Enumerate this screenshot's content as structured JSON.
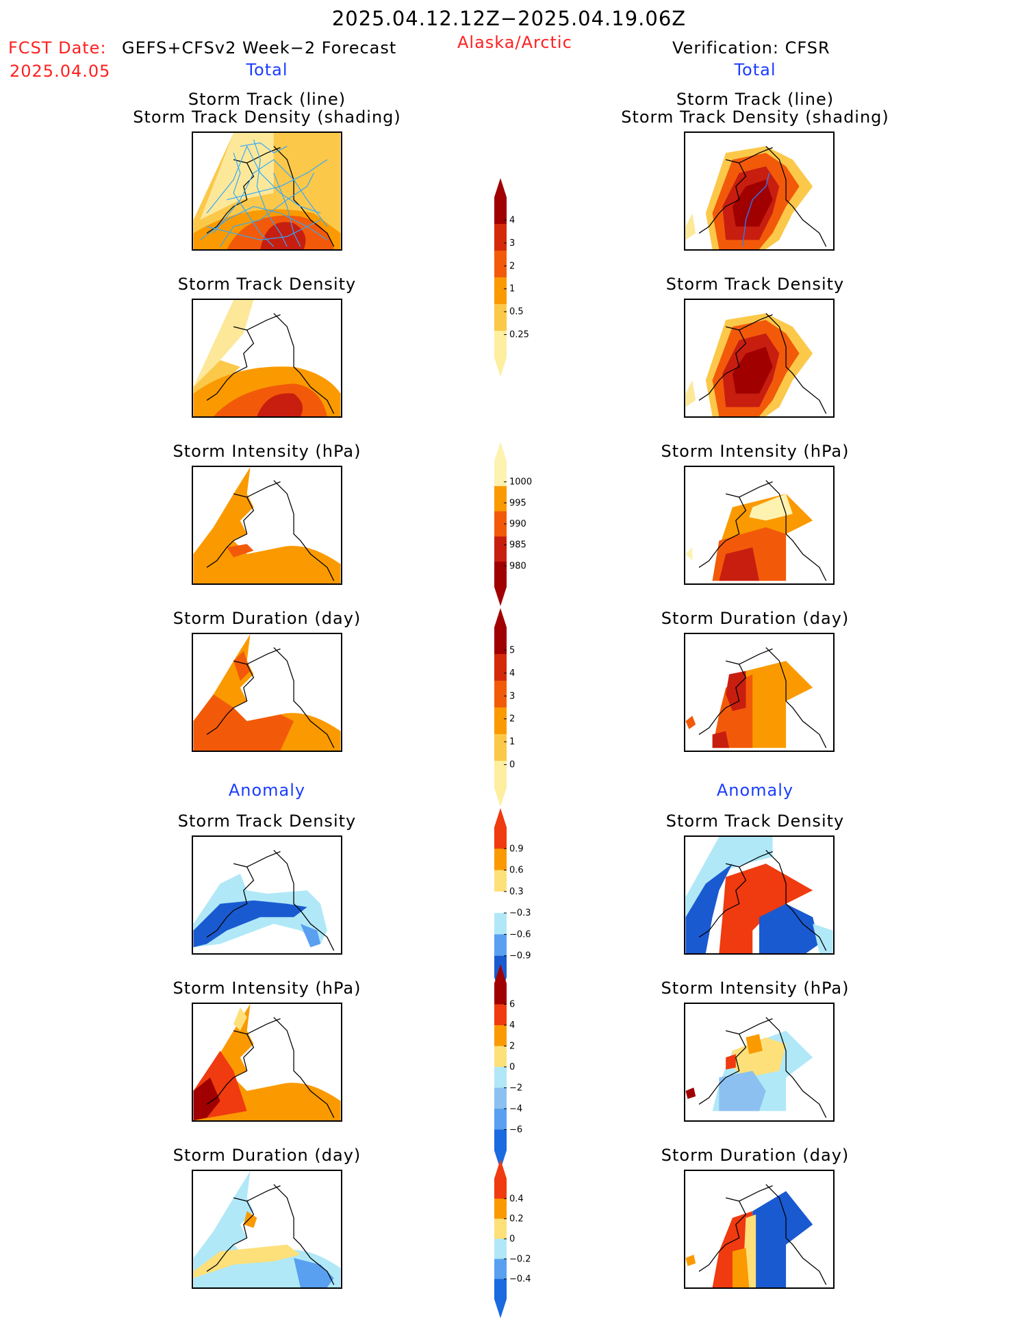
{
  "header": {
    "title": "2025.04.12.12Z−2025.04.19.06Z",
    "fcst_label": "FCST Date:",
    "fcst_model": "GEFS+CFSv2 Week−2 Forecast",
    "fcst_date": "2025.04.05",
    "region": "Alaska/Arctic",
    "verification": "Verification: CFSR"
  },
  "left": {
    "total_label": "Total",
    "anomaly_label": "Anomaly",
    "titles": {
      "track_line": "Storm Track (line)",
      "track_shading": "Storm Track Density (shading)",
      "density": "Storm Track Density",
      "intensity": "Storm Intensity (hPa)",
      "duration": "Storm Duration (day)",
      "anom_density": "Storm Track Density",
      "anom_intensity": "Storm Intensity (hPa)",
      "anom_duration": "Storm Duration (day)"
    }
  },
  "right": {
    "total_label": "Total",
    "anomaly_label": "Anomaly",
    "titles": {
      "track_line": "Storm Track (line)",
      "track_shading": "Storm Track Density (shading)",
      "density": "Storm Track Density",
      "intensity": "Storm Intensity (hPa)",
      "duration": "Storm Duration (day)",
      "anom_density": "Storm Track Density",
      "anom_intensity": "Storm Intensity (hPa)",
      "anom_duration": "Storm Duration (day)"
    }
  },
  "colorbars": {
    "density": {
      "ticks": [
        "4",
        "3",
        "2",
        "1",
        "0.5",
        "0.25"
      ],
      "colors": [
        "#a00000",
        "#d42a0a",
        "#f25a0a",
        "#fa9a00",
        "#fbc84a",
        "#fdeea0"
      ]
    },
    "intensity": {
      "ticks": [
        "1000",
        "995",
        "990",
        "985",
        "980"
      ],
      "colors": [
        "#fdf2b0",
        "#fa9a00",
        "#f25a0a",
        "#c81e10",
        "#a00000"
      ]
    },
    "duration": {
      "ticks": [
        "5",
        "4",
        "3",
        "2",
        "1",
        "0"
      ],
      "colors": [
        "#a00000",
        "#d42a0a",
        "#f25a0a",
        "#fa9a00",
        "#fbc84a",
        "#fdeea0"
      ]
    },
    "anom_density": {
      "ticks": [
        "0.9",
        "0.6",
        "0.3",
        "−0.3",
        "−0.6",
        "−0.9"
      ],
      "colors": [
        "#f03a10",
        "#fa9a00",
        "#fde07a",
        "#ffffff",
        "#b0e8f8",
        "#5aa0f0",
        "#1a5ad0"
      ]
    },
    "anom_intensity": {
      "ticks": [
        "6",
        "4",
        "2",
        "0",
        "−2",
        "−4",
        "−6"
      ],
      "colors": [
        "#a00000",
        "#f03a10",
        "#fa9a00",
        "#fde07a",
        "#b0e8f8",
        "#8cc0f0",
        "#5aa0f0",
        "#1a6ae0"
      ]
    },
    "anom_duration": {
      "ticks": [
        "0.4",
        "0.2",
        "0",
        "−0.2",
        "−0.4"
      ],
      "colors": [
        "#f03a10",
        "#fa9a00",
        "#fde07a",
        "#b0e8f8",
        "#5aa0f0",
        "#1a6ae0"
      ]
    }
  }
}
